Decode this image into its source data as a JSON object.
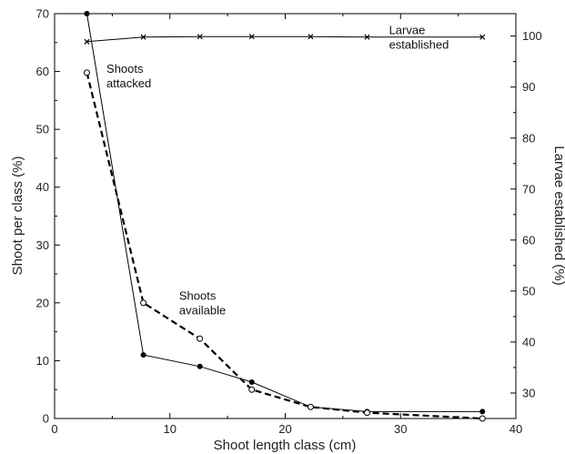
{
  "chart_data": {
    "type": "line",
    "xlabel": "Shoot length class (cm)",
    "ylabel": "Shoot per class (%)",
    "y2label": "Larvae established (%)",
    "xlim": [
      0,
      40
    ],
    "ylim": [
      0,
      70
    ],
    "y2lim": [
      25,
      104.4
    ],
    "x_ticks": [
      0,
      10,
      20,
      30,
      40
    ],
    "y_ticks": [
      0,
      10,
      20,
      30,
      40,
      50,
      60,
      70
    ],
    "y2_ticks": [
      30,
      40,
      50,
      60,
      70,
      80,
      90,
      100
    ],
    "grid": false,
    "series": [
      {
        "name": "Shoots attacked",
        "axis": "left",
        "marker": "filled-circle",
        "line": "solid",
        "x": [
          2.8,
          7.7,
          12.6,
          17.1,
          22.2,
          27.1,
          37.1
        ],
        "y": [
          70,
          11,
          9,
          6.3,
          2,
          1.2,
          1.2
        ]
      },
      {
        "name": "Shoots available",
        "axis": "left",
        "marker": "open-circle",
        "line": "dashed",
        "x": [
          2.8,
          7.7,
          12.6,
          17.1,
          22.2,
          27.1,
          37.1
        ],
        "y": [
          59.8,
          20,
          13.8,
          5,
          2,
          1,
          0
        ]
      },
      {
        "name": "Larvae established",
        "axis": "right",
        "marker": "cross",
        "line": "solid",
        "x": [
          2.8,
          7.7,
          12.6,
          17.1,
          22.2,
          27.1,
          37.1
        ],
        "y": [
          98.9,
          99.8,
          99.9,
          99.9,
          99.9,
          99.8,
          99.8
        ]
      }
    ],
    "annotations": [
      {
        "lines": [
          "Shoots",
          "attacked"
        ],
        "x": 4.5,
        "y": 59.8
      },
      {
        "lines": [
          "Shoots",
          "available"
        ],
        "x": 10.8,
        "y": 20.5
      },
      {
        "lines": [
          "Larvae",
          "established"
        ],
        "x": 29,
        "y": 100.4,
        "axis": "right"
      }
    ]
  }
}
